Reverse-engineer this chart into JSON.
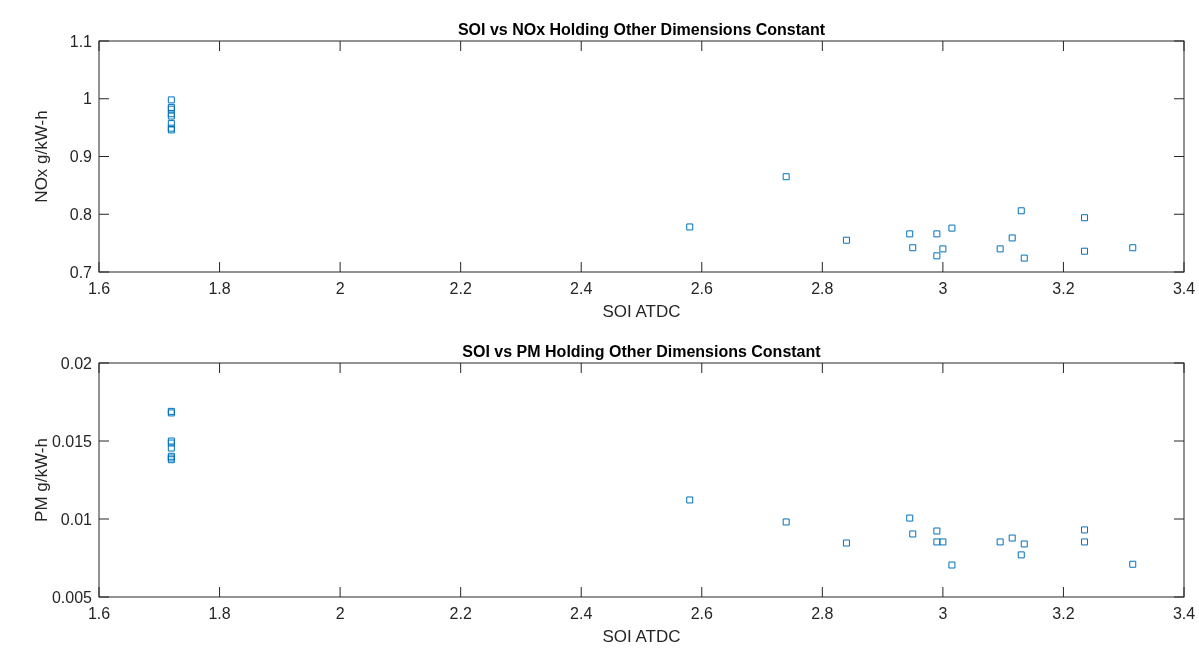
{
  "chart_data": [
    {
      "type": "scatter",
      "title": "SOI vs NOx Holding Other Dimensions Constant",
      "xlabel": "SOI ATDC",
      "ylabel": "NOx g/kW-h",
      "marker": "square",
      "grid": false,
      "xlim": [
        1.6,
        3.4
      ],
      "xticks": [
        1.6,
        1.8,
        2,
        2.2,
        2.4,
        2.6,
        2.8,
        3,
        3.2,
        3.4
      ],
      "ylim": [
        0.7,
        1.1
      ],
      "yticks": [
        0.7,
        0.8,
        0.9,
        1,
        1.1
      ],
      "series": [
        {
          "color": "#0072bd",
          "x": [
            1.72,
            1.72,
            1.72,
            1.72,
            1.72,
            1.72,
            1.72,
            1.72,
            2.58,
            2.74,
            2.84,
            2.945,
            2.95,
            2.99,
            2.99,
            3.0,
            3.015,
            3.095,
            3.115,
            3.13,
            3.135,
            3.235,
            3.235,
            3.315
          ],
          "values": [
            0.998,
            0.985,
            0.982,
            0.974,
            0.97,
            0.957,
            0.949,
            0.946,
            0.778,
            0.865,
            0.755,
            0.766,
            0.742,
            0.766,
            0.728,
            0.74,
            0.776,
            0.74,
            0.759,
            0.806,
            0.724,
            0.794,
            0.736,
            0.742
          ]
        }
      ]
    },
    {
      "type": "scatter",
      "title": "SOI vs PM Holding Other Dimensions Constant",
      "xlabel": "SOI ATDC",
      "ylabel": "PM g/kW-h",
      "marker": "square",
      "grid": false,
      "xlim": [
        1.6,
        3.4
      ],
      "xticks": [
        1.6,
        1.8,
        2,
        2.2,
        2.4,
        2.6,
        2.8,
        3,
        3.2,
        3.4
      ],
      "ylim": [
        0.005,
        0.02
      ],
      "yticks": [
        0.005,
        0.01,
        0.015,
        0.02
      ],
      "series": [
        {
          "color": "#0072bd",
          "x": [
            1.72,
            1.72,
            1.72,
            1.72,
            1.72,
            1.72,
            1.72,
            1.72,
            2.58,
            2.74,
            2.84,
            2.945,
            2.95,
            2.99,
            2.99,
            3.0,
            3.015,
            3.095,
            3.115,
            3.13,
            3.135,
            3.235,
            3.235,
            3.315
          ],
          "values": [
            0.0169,
            0.0168,
            0.015,
            0.01487,
            0.01455,
            0.01402,
            0.01391,
            0.0138,
            0.01122,
            0.00981,
            0.00846,
            0.01006,
            0.00904,
            0.00923,
            0.00853,
            0.00853,
            0.00705,
            0.00853,
            0.00878,
            0.0077,
            0.0084,
            0.0093,
            0.00853,
            0.0071
          ]
        }
      ]
    }
  ]
}
